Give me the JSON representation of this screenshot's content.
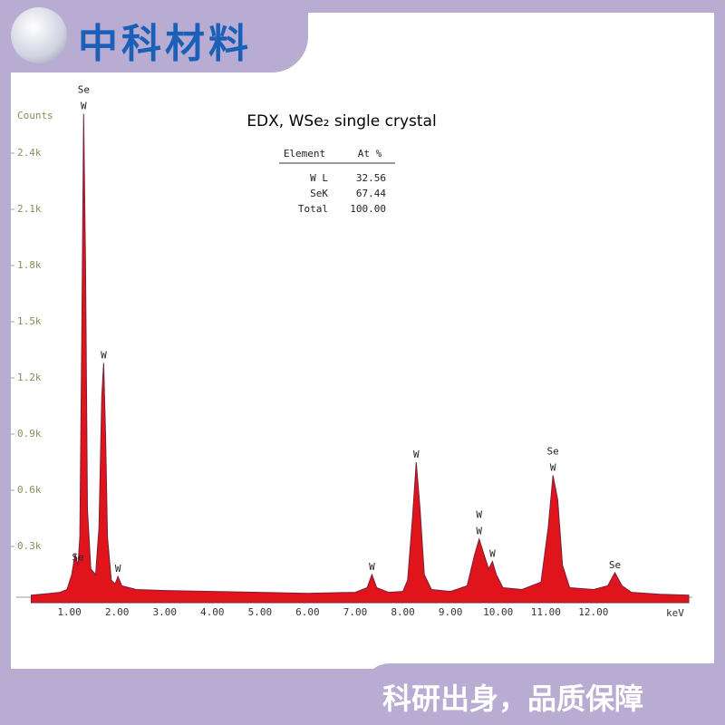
{
  "header": {
    "brand": "中科材料"
  },
  "footer": {
    "slogan": "科研出身，品质保障"
  },
  "chart_data": {
    "type": "area",
    "title": "EDX, WSe₂ single crystal",
    "y_label": "Counts",
    "x_label": "keV",
    "color": "#e0141b",
    "outline_color": "#7a1f3a",
    "x": [
      0.2,
      0.4,
      0.6,
      0.8,
      0.95,
      1.05,
      1.12,
      1.18,
      1.22,
      1.26,
      1.3,
      1.34,
      1.38,
      1.45,
      1.55,
      1.62,
      1.68,
      1.72,
      1.76,
      1.8,
      1.88,
      1.96,
      2.02,
      2.1,
      2.4,
      3,
      4,
      5,
      6,
      7,
      7.25,
      7.35,
      7.45,
      7.7,
      8,
      8.1,
      8.2,
      8.28,
      8.36,
      8.45,
      8.6,
      9,
      9.35,
      9.5,
      9.6,
      9.7,
      9.8,
      9.88,
      9.96,
      10.1,
      10.5,
      10.9,
      11.05,
      11.15,
      11.25,
      11.35,
      11.5,
      12,
      12.3,
      12.45,
      12.6,
      12.8,
      13.4,
      14
    ],
    "values": [
      40,
      45,
      50,
      55,
      70,
      150,
      260,
      200,
      350,
      1400,
      2610,
      1800,
      500,
      180,
      150,
      400,
      1100,
      1280,
      900,
      350,
      120,
      100,
      140,
      90,
      70,
      65,
      60,
      55,
      50,
      55,
      80,
      150,
      80,
      55,
      60,
      120,
      450,
      750,
      500,
      150,
      70,
      60,
      90,
      250,
      340,
      260,
      180,
      220,
      150,
      80,
      70,
      110,
      400,
      680,
      550,
      200,
      80,
      70,
      90,
      160,
      90,
      55,
      45,
      40
    ],
    "xlim": [
      0,
      14
    ],
    "ylim": [
      0,
      2640
    ],
    "xticks": [
      {
        "value": 1,
        "label": "1.00"
      },
      {
        "value": 2,
        "label": "2.00"
      },
      {
        "value": 3,
        "label": "3.00"
      },
      {
        "value": 4,
        "label": "4.00"
      },
      {
        "value": 5,
        "label": "5.00"
      },
      {
        "value": 6,
        "label": "6.00"
      },
      {
        "value": 7,
        "label": "7.00"
      },
      {
        "value": 8,
        "label": "8.00"
      },
      {
        "value": 9,
        "label": "9.00"
      },
      {
        "value": 10,
        "label": "10.00"
      },
      {
        "value": 11,
        "label": "11.00"
      },
      {
        "value": 12,
        "label": "12.00"
      }
    ],
    "yticks": [
      {
        "value": 300,
        "label": "0.3k"
      },
      {
        "value": 600,
        "label": "0.6k"
      },
      {
        "value": 900,
        "label": "0.9k"
      },
      {
        "value": 1200,
        "label": "1.2k"
      },
      {
        "value": 1500,
        "label": "1.5k"
      },
      {
        "value": 1800,
        "label": "1.8k"
      },
      {
        "value": 2100,
        "label": "2.1k"
      },
      {
        "value": 2400,
        "label": "2.4k"
      }
    ],
    "peak_labels": [
      {
        "x": 1.18,
        "lines": [
          "Se"
        ]
      },
      {
        "x": 1.3,
        "lines": [
          "Se",
          "W"
        ]
      },
      {
        "x": 1.72,
        "lines": [
          "W"
        ]
      },
      {
        "x": 2.02,
        "lines": [
          "W"
        ]
      },
      {
        "x": 7.35,
        "lines": [
          "W"
        ]
      },
      {
        "x": 8.28,
        "lines": [
          "W"
        ]
      },
      {
        "x": 9.6,
        "lines": [
          "W",
          "W"
        ]
      },
      {
        "x": 9.88,
        "lines": [
          "W"
        ]
      },
      {
        "x": 11.15,
        "lines": [
          "Se",
          "W"
        ]
      },
      {
        "x": 12.45,
        "lines": [
          "Se"
        ]
      }
    ],
    "table": {
      "header": [
        "Element",
        "At %"
      ],
      "rows": [
        [
          "W L",
          "32.56"
        ],
        [
          "SeK",
          "67.44"
        ],
        [
          "Total",
          "100.00"
        ]
      ]
    }
  }
}
